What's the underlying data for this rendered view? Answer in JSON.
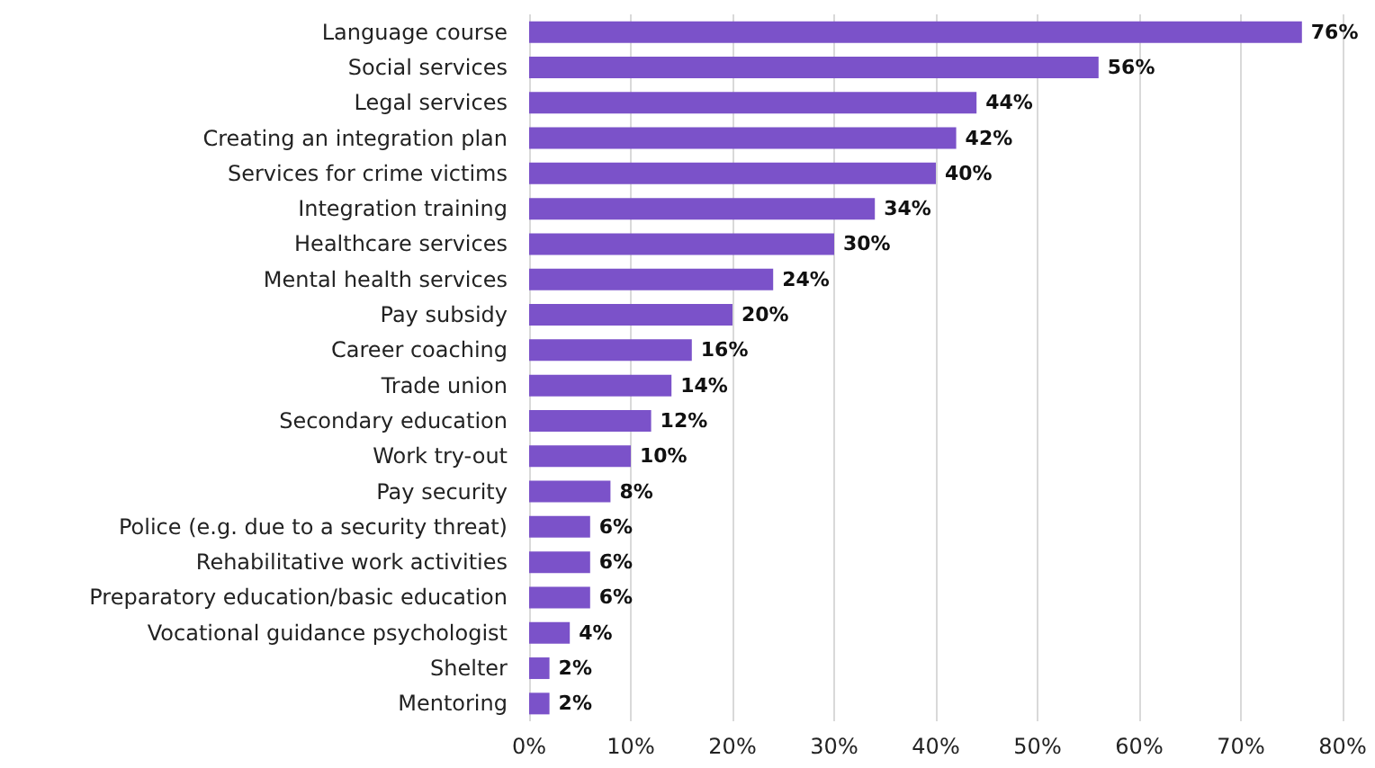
{
  "chart_data": {
    "type": "bar",
    "orientation": "horizontal",
    "categories": [
      "Language course",
      "Social services",
      "Legal services",
      "Creating an integration plan",
      "Services for crime victims",
      "Integration training",
      "Healthcare services",
      "Mental health services",
      "Pay subsidy",
      "Career coaching",
      "Trade union",
      "Secondary education",
      "Work try-out",
      "Pay security",
      "Police (e.g. due to a security threat)",
      "Rehabilitative work activities",
      "Preparatory education/basic education",
      "Vocational guidance psychologist",
      "Shelter",
      "Mentoring"
    ],
    "values": [
      76,
      56,
      44,
      42,
      40,
      34,
      30,
      24,
      20,
      16,
      14,
      12,
      10,
      8,
      6,
      6,
      6,
      4,
      2,
      2
    ],
    "value_labels": [
      "76%",
      "56%",
      "44%",
      "42%",
      "40%",
      "34%",
      "30%",
      "24%",
      "20%",
      "16%",
      "14%",
      "12%",
      "10%",
      "8%",
      "6%",
      "6%",
      "6%",
      "4%",
      "2%",
      "2%"
    ],
    "color": "#7b52c9",
    "xlim": [
      0,
      80
    ],
    "xticks": [
      {
        "value": 0,
        "label": "0%"
      },
      {
        "value": 10,
        "label": "10%"
      },
      {
        "value": 20,
        "label": "20%"
      },
      {
        "value": 30,
        "label": "30%"
      },
      {
        "value": 40,
        "label": "40%"
      },
      {
        "value": 50,
        "label": "50%"
      },
      {
        "value": 60,
        "label": "60%"
      },
      {
        "value": 70,
        "label": "70%"
      },
      {
        "value": 80,
        "label": "80%"
      }
    ],
    "grid": "x"
  }
}
